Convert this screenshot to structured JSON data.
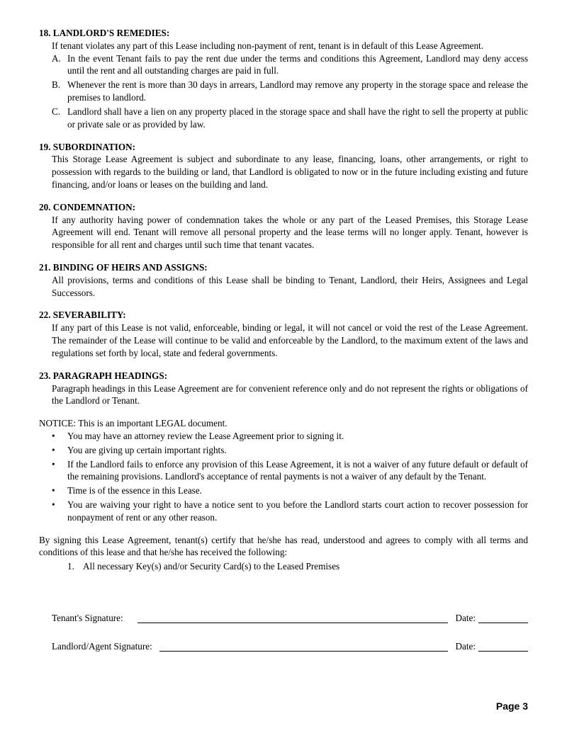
{
  "sections": {
    "s18": {
      "head": "18. LANDLORD'S REMEDIES:",
      "intro": "If tenant violates any part of this Lease including non-payment of rent, tenant is in default of this Lease Agreement.",
      "a": "In the event Tenant fails to pay the rent due under the terms and conditions this Agreement, Landlord may deny access until the rent and all outstanding charges are paid in full.",
      "b": "Whenever the rent is more than 30 days in arrears, Landlord may remove any property in the storage space and release the premises to landlord.",
      "c": "Landlord shall have a lien on any property placed in the storage space and shall have the right to sell the property at public or private sale or as provided by law."
    },
    "s19": {
      "head": "19. SUBORDINATION:",
      "body": "This Storage Lease Agreement is subject and subordinate to any lease, financing, loans, other arrangements, or right to possession with regards to the building or land, that Landlord is obligated to now or in the future including existing and future financing, and/or loans or leases on the building and land."
    },
    "s20": {
      "head": "20. CONDEMNATION:",
      "body": "If any authority having power of condemnation takes the whole or any part of the Leased Premises, this Storage Lease Agreement will end. Tenant will remove all personal property and the lease terms will no longer apply. Tenant, however is responsible for all rent and charges until such time that tenant vacates."
    },
    "s21": {
      "head": "21. BINDING OF HEIRS AND ASSIGNS:",
      "body": "All provisions, terms and conditions of this Lease shall be binding to Tenant, Landlord, their Heirs, Assignees and Legal Successors."
    },
    "s22": {
      "head": "22. SEVERABILITY:",
      "body": "If any part of this Lease is not valid, enforceable, binding or legal, it will not cancel or void the rest of the Lease Agreement. The remainder of the Lease will continue to be valid and enforceable by the Landlord, to the maximum extent of the laws and regulations set forth by local, state and federal governments."
    },
    "s23": {
      "head": "23. PARAGRAPH HEADINGS:",
      "body": "Paragraph headings in this Lease Agreement are for convenient reference only and do not represent the rights or obligations of the Landlord or Tenant."
    }
  },
  "notice": {
    "head": "NOTICE: This is an important LEGAL document.",
    "b1": "You may have an attorney review the Lease Agreement prior to signing it.",
    "b2": "You are giving up certain important rights.",
    "b3": "If the Landlord fails to enforce any provision of this Lease Agreement, it is not a waiver of any future default or default of the remaining provisions. Landlord's acceptance of rental payments is not a waiver of any default by the Tenant.",
    "b4": "Time is of the essence in this Lease.",
    "b5": "You are waiving your right to have a notice sent to you before the Landlord starts court action to recover possession for nonpayment of rent or any other reason."
  },
  "closing": {
    "p": "By signing this Lease Agreement, tenant(s) certify that he/she has read, understood and agrees to comply with all terms and conditions of this lease and that he/she has received the following:",
    "item1": "All necessary Key(s) and/or Security Card(s) to the Leased Premises"
  },
  "sig": {
    "tenant": "Tenant's Signature:",
    "landlord": "Landlord/Agent Signature:",
    "date": "Date:"
  },
  "letters": {
    "a": "A.",
    "b": "B.",
    "c": "C."
  },
  "num1": "1.",
  "bullet": "•",
  "page": "Page 3"
}
